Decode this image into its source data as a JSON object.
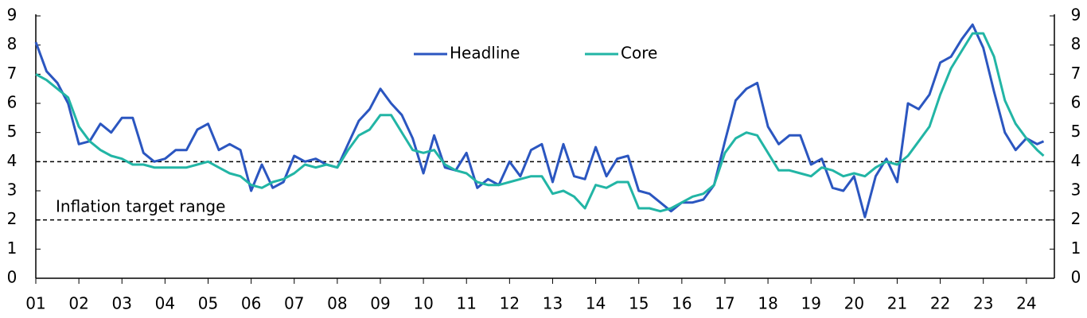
{
  "chart_data": {
    "type": "line",
    "x": [
      2001.0,
      2001.25,
      2001.5,
      2001.75,
      2002.0,
      2002.25,
      2002.5,
      2002.75,
      2003.0,
      2003.25,
      2003.5,
      2003.75,
      2004.0,
      2004.25,
      2004.5,
      2004.75,
      2005.0,
      2005.25,
      2005.5,
      2005.75,
      2006.0,
      2006.25,
      2006.5,
      2006.75,
      2007.0,
      2007.25,
      2007.5,
      2007.75,
      2008.0,
      2008.25,
      2008.5,
      2008.75,
      2009.0,
      2009.25,
      2009.5,
      2009.75,
      2010.0,
      2010.25,
      2010.5,
      2010.75,
      2011.0,
      2011.25,
      2011.5,
      2011.75,
      2012.0,
      2012.25,
      2012.5,
      2012.75,
      2013.0,
      2013.25,
      2013.5,
      2013.75,
      2014.0,
      2014.25,
      2014.5,
      2014.75,
      2015.0,
      2015.25,
      2015.5,
      2015.75,
      2016.0,
      2016.25,
      2016.5,
      2016.75,
      2017.0,
      2017.25,
      2017.5,
      2017.75,
      2018.0,
      2018.25,
      2018.5,
      2018.75,
      2019.0,
      2019.25,
      2019.5,
      2019.75,
      2020.0,
      2020.25,
      2020.5,
      2020.75,
      2021.0,
      2021.25,
      2021.5,
      2021.75,
      2022.0,
      2022.25,
      2022.5,
      2022.75,
      2023.0,
      2023.25,
      2023.5,
      2023.75,
      2024.0,
      2024.25,
      2024.4
    ],
    "series": [
      {
        "name": "Headline",
        "color": "#2b56c0",
        "values": [
          8.1,
          7.1,
          6.7,
          6.0,
          4.6,
          4.7,
          5.3,
          5.0,
          5.5,
          5.5,
          4.3,
          4.0,
          4.1,
          4.4,
          4.4,
          5.1,
          5.3,
          4.4,
          4.6,
          4.4,
          3.0,
          3.9,
          3.1,
          3.3,
          4.2,
          4.0,
          4.1,
          3.9,
          3.8,
          4.6,
          5.4,
          5.8,
          6.5,
          6.0,
          5.6,
          4.8,
          3.6,
          4.9,
          3.8,
          3.7,
          4.3,
          3.1,
          3.4,
          3.2,
          4.0,
          3.5,
          4.4,
          4.6,
          3.3,
          4.6,
          3.5,
          3.4,
          4.5,
          3.5,
          4.1,
          4.2,
          3.0,
          2.9,
          2.6,
          2.3,
          2.6,
          2.6,
          2.7,
          3.2,
          4.7,
          6.1,
          6.5,
          6.7,
          5.2,
          4.6,
          4.9,
          4.9,
          3.9,
          4.1,
          3.1,
          3.0,
          3.5,
          2.1,
          3.5,
          4.1,
          3.3,
          6.0,
          5.8,
          6.3,
          7.4,
          7.6,
          8.2,
          8.7,
          7.9,
          6.4,
          5.0,
          4.4,
          4.8,
          4.6,
          4.7
        ]
      },
      {
        "name": "Core",
        "color": "#22b5a5",
        "values": [
          7.0,
          6.8,
          6.5,
          6.2,
          5.2,
          4.7,
          4.4,
          4.2,
          4.1,
          3.9,
          3.9,
          3.8,
          3.8,
          3.8,
          3.8,
          3.9,
          4.0,
          3.8,
          3.6,
          3.5,
          3.2,
          3.1,
          3.3,
          3.4,
          3.6,
          3.9,
          3.8,
          3.9,
          3.8,
          4.4,
          4.9,
          5.1,
          5.6,
          5.6,
          5.0,
          4.4,
          4.3,
          4.4,
          3.9,
          3.7,
          3.6,
          3.3,
          3.2,
          3.2,
          3.3,
          3.4,
          3.5,
          3.5,
          2.9,
          3.0,
          2.8,
          2.4,
          3.2,
          3.1,
          3.3,
          3.3,
          2.4,
          2.4,
          2.3,
          2.4,
          2.6,
          2.8,
          2.9,
          3.2,
          4.3,
          4.8,
          5.0,
          4.9,
          4.3,
          3.7,
          3.7,
          3.6,
          3.5,
          3.8,
          3.7,
          3.5,
          3.6,
          3.5,
          3.8,
          4.0,
          3.9,
          4.2,
          4.7,
          5.2,
          6.3,
          7.2,
          7.8,
          8.4,
          8.4,
          7.6,
          6.1,
          5.3,
          4.8,
          4.4,
          4.2
        ]
      }
    ],
    "xlim": [
      2001,
      2024.65
    ],
    "xticks": [
      {
        "value": 2001,
        "label": "01"
      },
      {
        "value": 2002,
        "label": "02"
      },
      {
        "value": 2003,
        "label": "03"
      },
      {
        "value": 2004,
        "label": "04"
      },
      {
        "value": 2005,
        "label": "05"
      },
      {
        "value": 2006,
        "label": "06"
      },
      {
        "value": 2007,
        "label": "07"
      },
      {
        "value": 2008,
        "label": "08"
      },
      {
        "value": 2009,
        "label": "09"
      },
      {
        "value": 2010,
        "label": "10"
      },
      {
        "value": 2011,
        "label": "11"
      },
      {
        "value": 2012,
        "label": "12"
      },
      {
        "value": 2013,
        "label": "13"
      },
      {
        "value": 2014,
        "label": "14"
      },
      {
        "value": 2015,
        "label": "15"
      },
      {
        "value": 2016,
        "label": "16"
      },
      {
        "value": 2017,
        "label": "17"
      },
      {
        "value": 2018,
        "label": "18"
      },
      {
        "value": 2019,
        "label": "19"
      },
      {
        "value": 2020,
        "label": "20"
      },
      {
        "value": 2021,
        "label": "21"
      },
      {
        "value": 2022,
        "label": "22"
      },
      {
        "value": 2023,
        "label": "23"
      },
      {
        "value": 2024,
        "label": "24"
      }
    ],
    "ylim": [
      0,
      9
    ],
    "yticks": [
      0,
      1,
      2,
      3,
      4,
      5,
      6,
      7,
      8,
      9
    ],
    "hlines": [
      4,
      2
    ],
    "annotation": "Inflation target range"
  }
}
